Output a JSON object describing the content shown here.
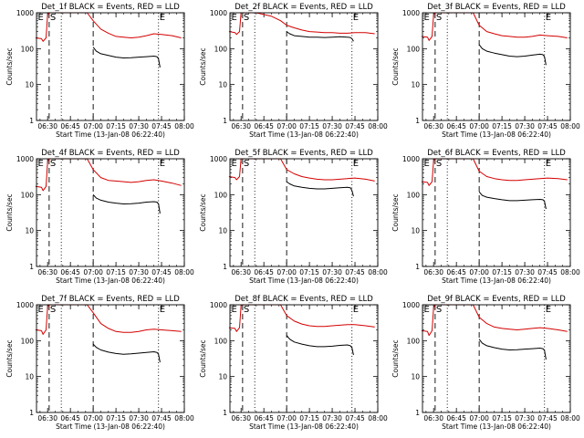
{
  "chart_data": {
    "type": "line",
    "layout": "3x3 grid",
    "colors": {
      "events": "#000000",
      "lld": "#d40000",
      "axes": "#000000",
      "background": "#ffffff"
    },
    "shared": {
      "xlabel": "Start Time (13-Jan-08 06:22:40)",
      "ylabel": "Counts/sec",
      "yscale": "log",
      "ylim": [
        1,
        1000
      ],
      "xlim": [
        "06:22:40",
        "08:00"
      ],
      "x_tick_labels": [
        "06:30",
        "06:45",
        "07:00",
        "07:15",
        "07:30",
        "07:45",
        "08:00"
      ],
      "y_tick_labels": [
        "1",
        "10",
        "100",
        "1000"
      ],
      "markers": [
        {
          "label": "E",
          "time": "06:23",
          "line": "none"
        },
        {
          "label": "S",
          "time": "06:31",
          "line": "dashed"
        },
        {
          "label": "",
          "time": "06:39",
          "line": "dotted"
        },
        {
          "label": "",
          "time": "07:00",
          "line": "dashed"
        },
        {
          "label": "E",
          "time": "07:43",
          "line": "dotted"
        }
      ]
    },
    "panels": [
      {
        "title": "Det_1f BLACK = Events, RED = LLD",
        "series": [
          {
            "name": "RED",
            "x": [
              "06:22",
              "06:26",
              "06:27",
              "06:29",
              "06:30",
              "06:31",
              "06:40",
              "06:50",
              "06:56",
              "07:00",
              "07:05",
              "07:10",
              "07:15",
              "07:20",
              "07:25",
              "07:30",
              "07:35",
              "07:40",
              "07:45",
              "07:52",
              "07:58"
            ],
            "y": [
              200,
              190,
              160,
              200,
              900,
              1000,
              1000,
              1000,
              1000,
              600,
              350,
              270,
              220,
              210,
              200,
              210,
              230,
              260,
              250,
              230,
              200
            ]
          },
          {
            "name": "BLACK",
            "x": [
              "07:00",
              "07:02",
              "07:05",
              "07:10",
              "07:15",
              "07:20",
              "07:25",
              "07:30",
              "07:35",
              "07:40",
              "07:42",
              "07:43",
              "07:44"
            ],
            "y": [
              110,
              85,
              72,
              65,
              58,
              55,
              56,
              58,
              60,
              62,
              60,
              52,
              30
            ]
          }
        ]
      },
      {
        "title": "Det_2f BLACK = Events, RED = LLD",
        "series": [
          {
            "name": "RED",
            "x": [
              "06:22",
              "06:26",
              "06:27",
              "06:29",
              "06:30",
              "06:31",
              "06:40",
              "06:50",
              "06:56",
              "07:00",
              "07:05",
              "07:10",
              "07:15",
              "07:20",
              "07:25",
              "07:30",
              "07:35",
              "07:40",
              "07:45",
              "07:52",
              "07:58"
            ],
            "y": [
              300,
              280,
              250,
              300,
              1000,
              1000,
              1000,
              800,
              600,
              450,
              380,
              330,
              300,
              290,
              280,
              280,
              270,
              270,
              280,
              280,
              260
            ]
          },
          {
            "name": "BLACK",
            "x": [
              "07:00",
              "07:02",
              "07:05",
              "07:10",
              "07:15",
              "07:20",
              "07:25",
              "07:30",
              "07:35",
              "07:40",
              "07:42",
              "07:43",
              "07:44"
            ],
            "y": [
              300,
              260,
              230,
              220,
              210,
              210,
              205,
              210,
              215,
              210,
              205,
              190,
              160
            ]
          }
        ]
      },
      {
        "title": "Det_3f BLACK = Events, RED = LLD",
        "series": [
          {
            "name": "RED",
            "x": [
              "06:22",
              "06:26",
              "06:27",
              "06:29",
              "06:30",
              "06:31",
              "06:40",
              "06:50",
              "06:56",
              "07:00",
              "07:05",
              "07:10",
              "07:15",
              "07:20",
              "07:25",
              "07:30",
              "07:35",
              "07:40",
              "07:45",
              "07:52",
              "07:58"
            ],
            "y": [
              220,
              210,
              170,
              220,
              900,
              1000,
              1000,
              1000,
              1000,
              450,
              300,
              260,
              230,
              220,
              210,
              210,
              220,
              240,
              230,
              220,
              200
            ]
          },
          {
            "name": "BLACK",
            "x": [
              "07:00",
              "07:02",
              "07:05",
              "07:10",
              "07:15",
              "07:20",
              "07:25",
              "07:30",
              "07:35",
              "07:40",
              "07:42",
              "07:43",
              "07:44"
            ],
            "y": [
              130,
              100,
              85,
              75,
              68,
              62,
              60,
              62,
              66,
              70,
              68,
              60,
              35
            ]
          }
        ]
      },
      {
        "title": "Det_4f BLACK = Events, RED = LLD",
        "series": [
          {
            "name": "RED",
            "x": [
              "06:22",
              "06:26",
              "06:27",
              "06:29",
              "06:30",
              "06:31",
              "06:40",
              "06:50",
              "06:56",
              "07:00",
              "07:05",
              "07:10",
              "07:15",
              "07:20",
              "07:25",
              "07:30",
              "07:35",
              "07:40",
              "07:45",
              "07:52",
              "07:58"
            ],
            "y": [
              170,
              160,
              130,
              170,
              850,
              1000,
              1000,
              1000,
              1000,
              500,
              300,
              250,
              240,
              230,
              220,
              230,
              250,
              260,
              240,
              210,
              180
            ]
          },
          {
            "name": "BLACK",
            "x": [
              "07:00",
              "07:02",
              "07:05",
              "07:10",
              "07:15",
              "07:20",
              "07:25",
              "07:30",
              "07:35",
              "07:40",
              "07:42",
              "07:43",
              "07:44"
            ],
            "y": [
              100,
              80,
              70,
              62,
              58,
              55,
              56,
              58,
              62,
              64,
              62,
              55,
              30
            ]
          }
        ]
      },
      {
        "title": "Det_5f BLACK = Events, RED = LLD",
        "series": [
          {
            "name": "RED",
            "x": [
              "06:22",
              "06:26",
              "06:27",
              "06:29",
              "06:30",
              "06:31",
              "06:40",
              "06:50",
              "06:56",
              "07:00",
              "07:05",
              "07:10",
              "07:15",
              "07:20",
              "07:25",
              "07:30",
              "07:35",
              "07:40",
              "07:45",
              "07:52",
              "07:58"
            ],
            "y": [
              320,
              300,
              260,
              320,
              1000,
              1000,
              1000,
              1000,
              1000,
              500,
              380,
              320,
              290,
              270,
              260,
              260,
              270,
              280,
              290,
              270,
              240
            ]
          },
          {
            "name": "BLACK",
            "x": [
              "07:00",
              "07:02",
              "07:05",
              "07:10",
              "07:15",
              "07:20",
              "07:25",
              "07:30",
              "07:35",
              "07:40",
              "07:42",
              "07:43",
              "07:44"
            ],
            "y": [
              230,
              200,
              175,
              160,
              150,
              145,
              145,
              150,
              155,
              160,
              155,
              130,
              90
            ]
          }
        ]
      },
      {
        "title": "Det_6f BLACK = Events, RED = LLD",
        "series": [
          {
            "name": "RED",
            "x": [
              "06:22",
              "06:26",
              "06:27",
              "06:29",
              "06:30",
              "06:31",
              "06:40",
              "06:50",
              "06:56",
              "07:00",
              "07:05",
              "07:10",
              "07:15",
              "07:20",
              "07:25",
              "07:30",
              "07:35",
              "07:40",
              "07:45",
              "07:52",
              "07:58"
            ],
            "y": [
              230,
              220,
              180,
              230,
              900,
              1000,
              1000,
              1000,
              1000,
              450,
              320,
              280,
              260,
              250,
              250,
              260,
              270,
              280,
              290,
              280,
              260
            ]
          },
          {
            "name": "BLACK",
            "x": [
              "07:00",
              "07:02",
              "07:05",
              "07:10",
              "07:15",
              "07:20",
              "07:25",
              "07:30",
              "07:35",
              "07:40",
              "07:42",
              "07:43",
              "07:44"
            ],
            "y": [
              120,
              95,
              85,
              78,
              72,
              68,
              68,
              70,
              72,
              74,
              72,
              65,
              40
            ]
          }
        ]
      },
      {
        "title": "Det_7f BLACK = Events, RED = LLD",
        "series": [
          {
            "name": "RED",
            "x": [
              "06:22",
              "06:26",
              "06:27",
              "06:29",
              "06:30",
              "06:31",
              "06:40",
              "06:50",
              "06:56",
              "07:00",
              "07:05",
              "07:10",
              "07:15",
              "07:20",
              "07:25",
              "07:30",
              "07:35",
              "07:40",
              "07:45",
              "07:52",
              "07:58"
            ],
            "y": [
              200,
              190,
              150,
              200,
              900,
              1000,
              1000,
              1000,
              1000,
              600,
              300,
              220,
              180,
              170,
              170,
              180,
              200,
              210,
              200,
              190,
              180
            ]
          },
          {
            "name": "BLACK",
            "x": [
              "07:00",
              "07:02",
              "07:05",
              "07:10",
              "07:15",
              "07:20",
              "07:25",
              "07:30",
              "07:35",
              "07:40",
              "07:42",
              "07:43",
              "07:44"
            ],
            "y": [
              80,
              65,
              55,
              48,
              44,
              42,
              43,
              45,
              47,
              49,
              47,
              42,
              25
            ]
          }
        ]
      },
      {
        "title": "Det_8f BLACK = Events, RED = LLD",
        "series": [
          {
            "name": "RED",
            "x": [
              "06:22",
              "06:26",
              "06:27",
              "06:29",
              "06:30",
              "06:31",
              "06:40",
              "06:50",
              "06:56",
              "07:00",
              "07:05",
              "07:10",
              "07:15",
              "07:20",
              "07:25",
              "07:30",
              "07:35",
              "07:40",
              "07:45",
              "07:52",
              "07:58"
            ],
            "y": [
              230,
              220,
              180,
              230,
              950,
              1000,
              1000,
              1000,
              1000,
              500,
              350,
              290,
              260,
              250,
              250,
              260,
              270,
              280,
              280,
              260,
              240
            ]
          },
          {
            "name": "BLACK",
            "x": [
              "07:00",
              "07:02",
              "07:05",
              "07:10",
              "07:15",
              "07:20",
              "07:25",
              "07:30",
              "07:35",
              "07:40",
              "07:42",
              "07:43",
              "07:44"
            ],
            "y": [
              140,
              110,
              92,
              80,
              72,
              68,
              68,
              70,
              74,
              76,
              72,
              64,
              40
            ]
          }
        ]
      },
      {
        "title": "Det_9f BLACK = Events, RED = LLD",
        "series": [
          {
            "name": "RED",
            "x": [
              "06:22",
              "06:26",
              "06:27",
              "06:29",
              "06:30",
              "06:31",
              "06:40",
              "06:50",
              "06:56",
              "07:00",
              "07:05",
              "07:10",
              "07:15",
              "07:20",
              "07:25",
              "07:30",
              "07:35",
              "07:40",
              "07:45",
              "07:52",
              "07:58"
            ],
            "y": [
              190,
              180,
              140,
              190,
              850,
              1000,
              1000,
              1000,
              1000,
              450,
              300,
              240,
              220,
              210,
              200,
              210,
              220,
              230,
              220,
              200,
              180
            ]
          },
          {
            "name": "BLACK",
            "x": [
              "07:00",
              "07:02",
              "07:05",
              "07:10",
              "07:15",
              "07:20",
              "07:25",
              "07:30",
              "07:35",
              "07:40",
              "07:42",
              "07:43",
              "07:44"
            ],
            "y": [
              110,
              85,
              72,
              64,
              58,
              55,
              56,
              58,
              60,
              62,
              60,
              54,
              30
            ]
          }
        ]
      }
    ]
  }
}
